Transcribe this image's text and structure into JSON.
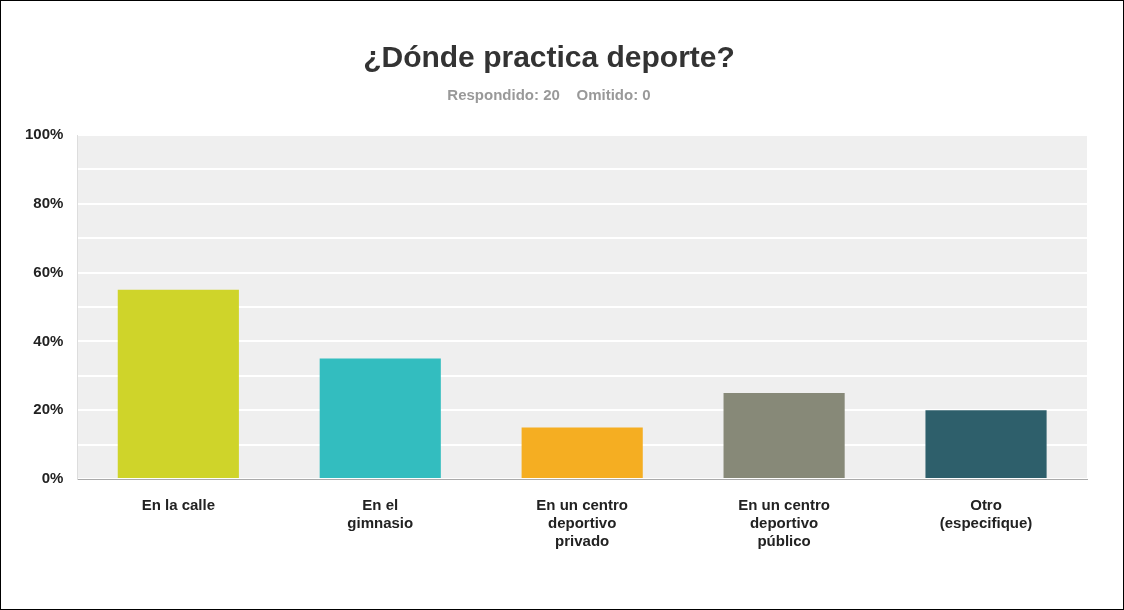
{
  "chart_data": {
    "type": "bar",
    "title": "¿Dónde practica deporte?",
    "subtitle": "Respondido: 20    Omitido: 0",
    "categories": [
      "En la calle",
      "En el gimnasio",
      "En un centro deportivo privado",
      "En un centro deportivo público",
      "Otro (especifique)"
    ],
    "values": [
      55,
      35,
      15,
      25,
      20
    ],
    "colors": [
      "#cfd42a",
      "#33bdbf",
      "#f5ae22",
      "#878978",
      "#2e5f6b"
    ],
    "ylim": [
      0,
      100
    ],
    "yticks": [
      {
        "value": 0,
        "label": "0%"
      },
      {
        "value": 10,
        "label": null
      },
      {
        "value": 20,
        "label": "20%"
      },
      {
        "value": 30,
        "label": null
      },
      {
        "value": 40,
        "label": "40%"
      },
      {
        "value": 50,
        "label": null
      },
      {
        "value": 60,
        "label": "60%"
      },
      {
        "value": 70,
        "label": null
      },
      {
        "value": 80,
        "label": "80%"
      },
      {
        "value": 90,
        "label": null
      },
      {
        "value": 100,
        "label": "100%"
      }
    ],
    "grid": "y",
    "legend": false
  }
}
